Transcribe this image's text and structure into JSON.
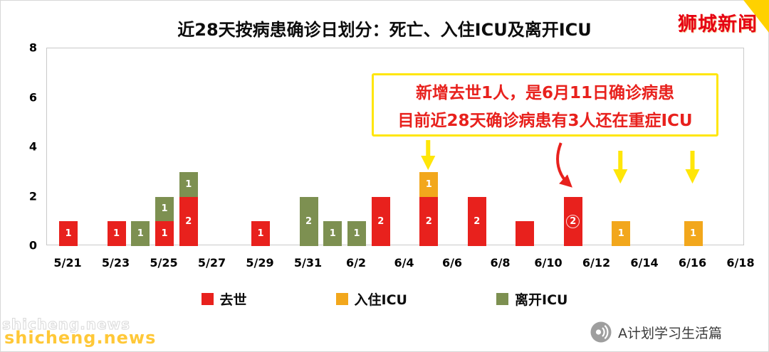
{
  "branding": {
    "logo_text": "狮城新闻",
    "logo_color": "#e60012",
    "corner_ribbon_color": "#ffd100"
  },
  "chart_data": {
    "type": "bar",
    "stacked": true,
    "title": "近28天按病患确诊日划分：死亡、入住ICU及离开ICU",
    "ylim": [
      0,
      8
    ],
    "yticks": [
      0,
      2,
      4,
      6,
      8
    ],
    "xtick_labels": [
      "5/21",
      "5/23",
      "5/25",
      "5/27",
      "5/29",
      "5/31",
      "6/2",
      "6/4",
      "6/6",
      "6/8",
      "6/10",
      "6/12",
      "6/14",
      "6/16",
      "6/18"
    ],
    "grid": false,
    "legend_position": "bottom",
    "legend": [
      "去世",
      "入住ICU",
      "离开ICU"
    ],
    "series_colors": {
      "去世": "#e8211d",
      "入住ICU": "#f2a71c",
      "离开ICU": "#7d9051"
    },
    "bars": [
      {
        "date": "5/21",
        "segments": [
          {
            "series": "去世",
            "value": 1,
            "label": "1"
          }
        ]
      },
      {
        "date": "5/23",
        "segments": [
          {
            "series": "去世",
            "value": 1,
            "label": "1"
          }
        ]
      },
      {
        "date": "5/24",
        "segments": [
          {
            "series": "离开ICU",
            "value": 1,
            "label": "1"
          }
        ]
      },
      {
        "date": "5/25",
        "segments": [
          {
            "series": "去世",
            "value": 1,
            "label": "1"
          },
          {
            "series": "离开ICU",
            "value": 1,
            "label": "1"
          }
        ]
      },
      {
        "date": "5/26",
        "segments": [
          {
            "series": "去世",
            "value": 2,
            "label": "2"
          },
          {
            "series": "离开ICU",
            "value": 1,
            "label": "1"
          }
        ]
      },
      {
        "date": "5/29",
        "segments": [
          {
            "series": "去世",
            "value": 1,
            "label": "1"
          }
        ]
      },
      {
        "date": "5/31",
        "segments": [
          {
            "series": "离开ICU",
            "value": 2,
            "label": "2"
          }
        ]
      },
      {
        "date": "6/1",
        "segments": [
          {
            "series": "离开ICU",
            "value": 1,
            "label": "1"
          }
        ]
      },
      {
        "date": "6/2",
        "segments": [
          {
            "series": "离开ICU",
            "value": 1,
            "label": "1"
          }
        ]
      },
      {
        "date": "6/3",
        "segments": [
          {
            "series": "去世",
            "value": 2,
            "label": "2"
          }
        ]
      },
      {
        "date": "6/5",
        "segments": [
          {
            "series": "去世",
            "value": 2,
            "label": "2"
          },
          {
            "series": "入住ICU",
            "value": 1,
            "label": "1"
          }
        ]
      },
      {
        "date": "6/7",
        "segments": [
          {
            "series": "去世",
            "value": 2,
            "label": "2"
          }
        ]
      },
      {
        "date": "6/9",
        "segments": [
          {
            "series": "去世",
            "value": 1,
            "label": ""
          }
        ]
      },
      {
        "date": "6/11",
        "segments": [
          {
            "series": "去世",
            "value": 2,
            "label": "2",
            "circled": true
          }
        ]
      },
      {
        "date": "6/13",
        "segments": [
          {
            "series": "入住ICU",
            "value": 1,
            "label": "1"
          }
        ]
      },
      {
        "date": "6/16",
        "segments": [
          {
            "series": "入住ICU",
            "value": 1,
            "label": "1"
          }
        ]
      }
    ],
    "annotation": {
      "lines": [
        "新增去世1人，是6月11日确诊病患",
        "目前近28天确诊病患有3人还在重症ICU"
      ],
      "text_color": "#e8211d",
      "border_color": "#ffe608"
    },
    "arrows": [
      {
        "target_date": "6/5",
        "color": "#ffe608",
        "style": "straight"
      },
      {
        "target_date": "6/11",
        "color": "#e8211d",
        "style": "curved"
      },
      {
        "target_date": "6/13",
        "color": "#ffe608",
        "style": "straight"
      },
      {
        "target_date": "6/16",
        "color": "#ffe608",
        "style": "straight"
      }
    ]
  },
  "watermark": {
    "text": "shicheng.news",
    "color": "#ffc838"
  },
  "footer": {
    "account_name": "A计划学习生活篇"
  }
}
